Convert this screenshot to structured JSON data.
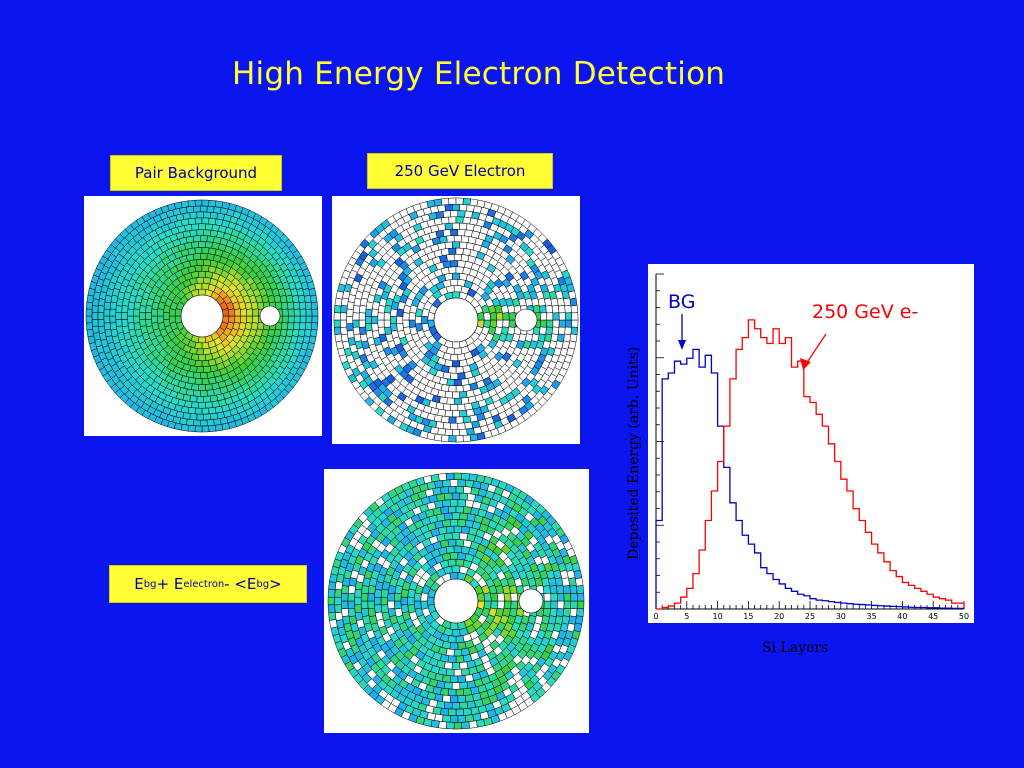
{
  "slide": {
    "title": "High Energy Electron Detection"
  },
  "labels": {
    "pair_background": "Pair Background",
    "electron": "250 GeV Electron",
    "formula": {
      "E1": "E",
      "bg1": "bg",
      "plus": " + E",
      "electron": "electron",
      "minus": " - <E",
      "bg2": "bg",
      "close": ">"
    }
  },
  "chart_data": {
    "type": "line",
    "xlabel": "Si Layers",
    "ylabel": "Deposited Energy (arb. Units)",
    "xlim": [
      0,
      50
    ],
    "x_ticks": [
      "0",
      "5",
      "10",
      "15",
      "20",
      "25",
      "30",
      "35",
      "40",
      "45",
      "50"
    ],
    "annotations": [
      "BG",
      "250 GeV e-"
    ],
    "series": [
      {
        "name": "BG",
        "color": "#0000cc",
        "x": [
          0,
          1,
          2,
          3,
          4,
          5,
          6,
          7,
          8,
          9,
          10,
          11,
          12,
          13,
          14,
          15,
          16,
          17,
          18,
          19,
          20,
          21,
          22,
          23,
          24,
          25,
          26,
          27,
          28,
          29,
          30,
          31,
          32,
          33,
          34,
          35,
          36,
          37,
          38,
          39,
          40,
          41,
          42,
          43,
          44,
          45,
          46,
          47,
          48,
          49
        ],
        "values": [
          0.3,
          0.78,
          0.8,
          0.84,
          0.83,
          0.85,
          0.88,
          0.82,
          0.86,
          0.8,
          0.62,
          0.48,
          0.36,
          0.3,
          0.25,
          0.22,
          0.19,
          0.14,
          0.12,
          0.1,
          0.085,
          0.07,
          0.06,
          0.05,
          0.045,
          0.035,
          0.03,
          0.028,
          0.025,
          0.022,
          0.02,
          0.018,
          0.016,
          0.015,
          0.014,
          0.012,
          0.011,
          0.01,
          0.009,
          0.008,
          0.007,
          0.006,
          0.005,
          0.005,
          0.004,
          0.004,
          0.003,
          0.003,
          0.002,
          0.002
        ]
      },
      {
        "name": "250 GeV e-",
        "color": "#ff0000",
        "x": [
          0,
          1,
          2,
          3,
          4,
          5,
          6,
          7,
          8,
          9,
          10,
          11,
          12,
          13,
          14,
          15,
          16,
          17,
          18,
          19,
          20,
          21,
          22,
          23,
          24,
          25,
          26,
          27,
          28,
          29,
          30,
          31,
          32,
          33,
          34,
          35,
          36,
          37,
          38,
          39,
          40,
          41,
          42,
          43,
          44,
          45,
          46,
          47,
          48,
          49
        ],
        "values": [
          0.0,
          0.005,
          0.01,
          0.02,
          0.04,
          0.07,
          0.12,
          0.2,
          0.3,
          0.4,
          0.5,
          0.62,
          0.78,
          0.88,
          0.92,
          0.98,
          0.95,
          0.92,
          0.9,
          0.95,
          0.9,
          0.92,
          0.82,
          0.84,
          0.72,
          0.7,
          0.66,
          0.62,
          0.56,
          0.5,
          0.44,
          0.4,
          0.34,
          0.3,
          0.26,
          0.22,
          0.19,
          0.16,
          0.13,
          0.11,
          0.09,
          0.08,
          0.07,
          0.06,
          0.05,
          0.04,
          0.035,
          0.03,
          0.02,
          0.02
        ]
      }
    ]
  }
}
